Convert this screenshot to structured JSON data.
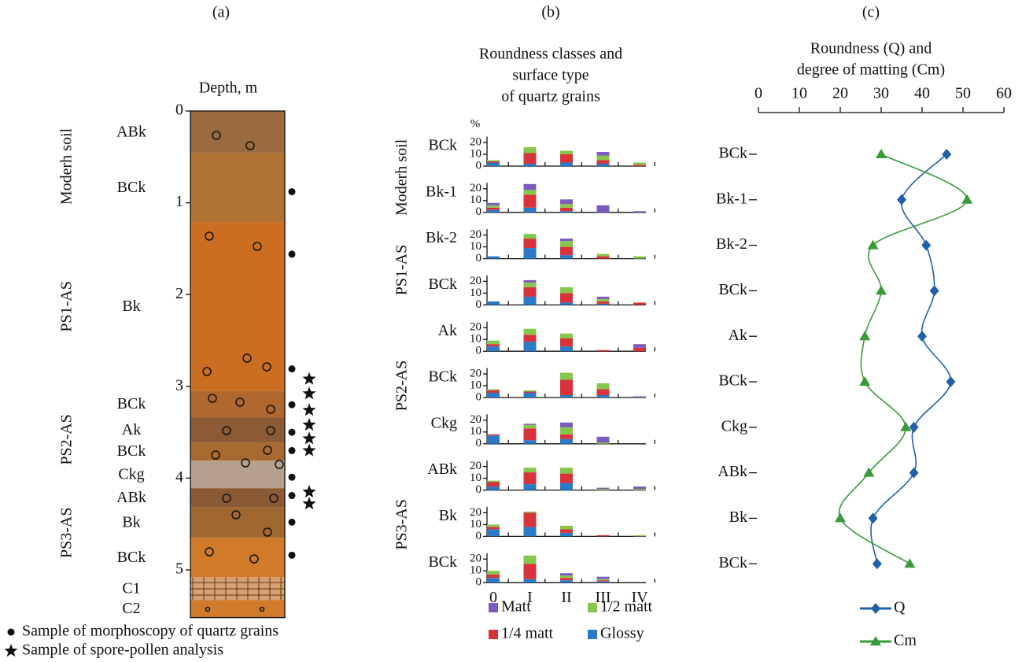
{
  "chart_data": [
    {
      "type": "soil-column",
      "panel_label": "(a)",
      "y_label": "Depth, m",
      "ylim": [
        0,
        5.52
      ],
      "yticks": [
        0,
        1,
        2,
        3,
        4,
        5
      ],
      "layers": [
        {
          "name": "ABk",
          "top": 0,
          "bottom": 0.46,
          "color": "#9a6a40"
        },
        {
          "name": "BCk",
          "top": 0.46,
          "bottom": 1.21,
          "color": "#b07232"
        },
        {
          "name": "Bk",
          "top": 1.21,
          "bottom": 3.05,
          "color": "#cc6e22"
        },
        {
          "name": "BCk",
          "top": 3.05,
          "bottom": 3.34,
          "color": "#b0682e"
        },
        {
          "name": "Ak",
          "top": 3.34,
          "bottom": 3.61,
          "color": "#8c5a34"
        },
        {
          "name": "BCk",
          "top": 3.61,
          "bottom": 3.81,
          "color": "#a86a30"
        },
        {
          "name": "Ckg",
          "top": 3.81,
          "bottom": 4.11,
          "color": "#b4a08c"
        },
        {
          "name": "ABk",
          "top": 4.11,
          "bottom": 4.32,
          "color": "#8a5a34"
        },
        {
          "name": "Bk",
          "top": 4.32,
          "bottom": 4.65,
          "color": "#a0682e"
        },
        {
          "name": "BCk",
          "top": 4.65,
          "bottom": 5.08,
          "color": "#d07a2a"
        },
        {
          "name": "C1",
          "top": 5.08,
          "bottom": 5.33,
          "color": "#d8a070",
          "hatched": true
        },
        {
          "name": "C2",
          "top": 5.33,
          "bottom": 5.52,
          "color": "#d07a2a"
        }
      ],
      "units": [
        {
          "name": "Moderh soil",
          "top": 0,
          "bottom": 1.21
        },
        {
          "name": "PS1-AS",
          "top": 1.21,
          "bottom": 3.05
        },
        {
          "name": "PS2-AS",
          "top": 3.05,
          "bottom": 4.11
        },
        {
          "name": "PS3-AS",
          "top": 4.11,
          "bottom": 5.08
        }
      ],
      "samples": [
        {
          "name": "Sample of morphoscopy of quartz grains",
          "marker": "circle",
          "depths": [
            0.88,
            1.56,
            2.81,
            3.2,
            3.5,
            3.7,
            3.99,
            4.19,
            4.48,
            4.84
          ]
        },
        {
          "name": "Sample of spore-pollen analysis",
          "marker": "star",
          "depths": [
            2.92,
            3.08,
            3.26,
            3.42,
            3.57,
            3.7,
            4.15,
            4.28
          ]
        }
      ]
    },
    {
      "type": "stacked-bar-grid",
      "panel_label": "(b)",
      "title": [
        "Roundness classes and",
        "surface type",
        "of quartz grains"
      ],
      "y_unit": "%",
      "categories": [
        "0",
        "I",
        "II",
        "III",
        "IV"
      ],
      "ylim": [
        0,
        25
      ],
      "yticks": [
        0,
        10,
        20
      ],
      "series": [
        {
          "name": "Matt",
          "color": "#7a5cc0"
        },
        {
          "name": "1/2 matt",
          "color": "#86c64a"
        },
        {
          "name": "1/4 matt",
          "color": "#d8333a"
        },
        {
          "name": "Glossy",
          "color": "#2a7ac8"
        }
      ],
      "groups": [
        {
          "name": "Moderh soil",
          "panels": [
            {
              "name": "BCk",
              "values": [
                [
                  0,
                  0,
                  0,
                  3,
                  0
                ],
                [
                  1,
                  5,
                  3,
                  4,
                  2
                ],
                [
                  1,
                  9,
                  7,
                  3,
                  1
                ],
                [
                  3,
                  2,
                  3,
                  2,
                  0
                ]
              ]
            },
            {
              "name": "Bk-1",
              "values": [
                [
                  2,
                  5,
                  4,
                  6,
                  1
                ],
                [
                  2,
                  4,
                  3,
                  0,
                  0
                ],
                [
                  2,
                  11,
                  3,
                  0,
                  0
                ],
                [
                  2,
                  4,
                  1,
                  0,
                  0
                ]
              ]
            }
          ]
        },
        {
          "name": "PS1-AS",
          "panels": [
            {
              "name": "Bk-2",
              "values": [
                [
                  0,
                  0,
                  2,
                  0,
                  0
                ],
                [
                  0,
                  4,
                  5,
                  2,
                  2
                ],
                [
                  0,
                  8,
                  7,
                  2,
                  0
                ],
                [
                  2,
                  9,
                  3,
                  0,
                  0
                ]
              ]
            },
            {
              "name": "BCk",
              "values": [
                [
                  0,
                  2,
                  0,
                  2,
                  0
                ],
                [
                  0,
                  4,
                  5,
                  2,
                  0
                ],
                [
                  0,
                  8,
                  8,
                  2,
                  2
                ],
                [
                  3,
                  7,
                  2,
                  1,
                  0
                ]
              ]
            }
          ]
        },
        {
          "name": "PS2-AS",
          "panels": [
            {
              "name": "Ak",
              "values": [
                [
                  0,
                  0,
                  0,
                  0,
                  3
                ],
                [
                  3,
                  5,
                  4,
                  0,
                  0
                ],
                [
                  2,
                  6,
                  7,
                  1,
                  3
                ],
                [
                  4,
                  8,
                  4,
                  0,
                  0
                ]
              ]
            },
            {
              "name": "BCk",
              "values": [
                [
                  0,
                  0,
                  0,
                  0,
                  1
                ],
                [
                  1,
                  1,
                  6,
                  5,
                  0
                ],
                [
                  2,
                  1,
                  13,
                  5,
                  0
                ],
                [
                  4,
                  4,
                  2,
                  2,
                  0
                ]
              ]
            },
            {
              "name": "Ckg",
              "values": [
                [
                  0,
                  1,
                  4,
                  5,
                  0
                ],
                [
                  0,
                  3,
                  6,
                  1,
                  0
                ],
                [
                  1,
                  10,
                  4,
                  0,
                  0
                ],
                [
                  7,
                  3,
                  4,
                  0,
                  0
                ]
              ]
            }
          ]
        },
        {
          "name": "PS3-AS",
          "panels": [
            {
              "name": "ABk",
              "values": [
                [
                  0,
                  0,
                  0,
                  1,
                  2
                ],
                [
                  1,
                  4,
                  5,
                  1,
                  1
                ],
                [
                  4,
                  10,
                  8,
                  0,
                  0
                ],
                [
                  3,
                  5,
                  6,
                  0,
                  0
                ]
              ]
            },
            {
              "name": "Bk",
              "values": [
                [
                  0,
                  0,
                  0,
                  0,
                  0
                ],
                [
                  2,
                  1,
                  3,
                  0,
                  1
                ],
                [
                  2,
                  12,
                  3,
                  1,
                  0
                ],
                [
                  6,
                  8,
                  3,
                  0,
                  0
                ]
              ]
            },
            {
              "name": "BCk",
              "values": [
                [
                  0,
                  0,
                  2,
                  2,
                  0
                ],
                [
                  3,
                  7,
                  2,
                  1,
                  0
                ],
                [
                  3,
                  13,
                  2,
                  1,
                  0
                ],
                [
                  4,
                  3,
                  2,
                  1,
                  0
                ]
              ]
            }
          ]
        }
      ]
    },
    {
      "type": "line",
      "panel_label": "(c)",
      "title": [
        "Roundness (Q) and",
        "degree of matting (Cm)"
      ],
      "categories": [
        "BCk",
        "Bk-1",
        "Bk-2",
        "BCk",
        "Ak",
        "BCk",
        "Ckg",
        "ABk",
        "Bk",
        "BCk"
      ],
      "xlim": [
        0,
        60
      ],
      "xticks": [
        0,
        10,
        20,
        30,
        40,
        50,
        60
      ],
      "series": [
        {
          "name": "Q",
          "color": "#2060a8",
          "marker": "diamond",
          "values": [
            46,
            35,
            41,
            43,
            40,
            47,
            38,
            38,
            28,
            29
          ]
        },
        {
          "name": "Cm",
          "color": "#3a9a3a",
          "marker": "triangle",
          "values": [
            30,
            51,
            28,
            30,
            26,
            26,
            36,
            27,
            20,
            37
          ]
        }
      ]
    }
  ]
}
